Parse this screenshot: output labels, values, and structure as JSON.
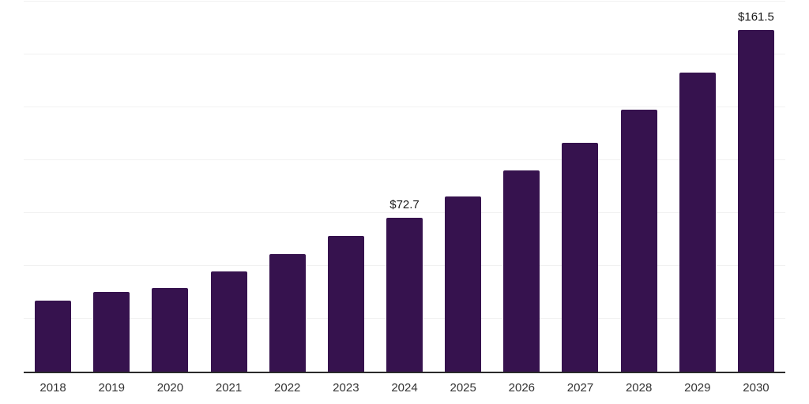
{
  "chart_data": {
    "type": "bar",
    "title": "",
    "xlabel": "",
    "ylabel": "",
    "categories": [
      "2018",
      "2019",
      "2020",
      "2021",
      "2022",
      "2023",
      "2024",
      "2025",
      "2026",
      "2027",
      "2028",
      "2029",
      "2030"
    ],
    "values": [
      33.5,
      37.7,
      39.5,
      47.3,
      55.6,
      64.2,
      72.7,
      83.0,
      95.0,
      108.4,
      123.8,
      141.6,
      161.5
    ],
    "data_labels": [
      "",
      "",
      "",
      "",
      "",
      "",
      "$72.7",
      "",
      "",
      "",
      "",
      "",
      "$161.5"
    ],
    "ylim": [
      0,
      175
    ],
    "gridline_interval": 25,
    "grid": true,
    "legend": false,
    "colors": {
      "bar": "#36124E",
      "axis_line": "#2b2b2b",
      "gridline": "#f1f1f1",
      "value_label": "#1a1a1a",
      "tick_label": "#333333",
      "background": "#ffffff"
    }
  }
}
